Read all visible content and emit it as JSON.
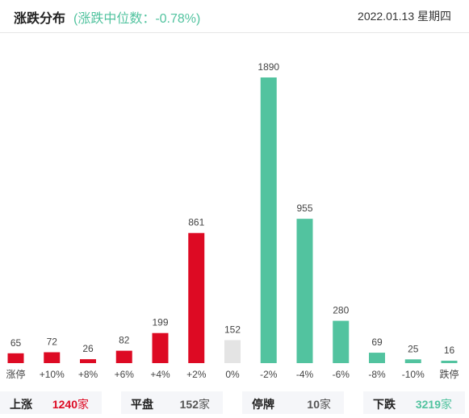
{
  "header": {
    "title": "涨跌分布",
    "median_text": "(涨跌中位数：-0.78%)",
    "date": "2022.01.13 星期四"
  },
  "colors": {
    "up": "#dd0a23",
    "flat": "#e4e4e4",
    "down": "#52c39f"
  },
  "chart_data": {
    "type": "bar",
    "categories": [
      "涨停",
      "+10%",
      "+8%",
      "+6%",
      "+4%",
      "+2%",
      "0%",
      "-2%",
      "-4%",
      "-6%",
      "-8%",
      "-10%",
      "跌停"
    ],
    "values": [
      65,
      72,
      26,
      82,
      199,
      861,
      152,
      1890,
      955,
      280,
      69,
      25,
      16
    ],
    "bar_colors": [
      "up",
      "up",
      "up",
      "up",
      "up",
      "up",
      "flat",
      "down",
      "down",
      "down",
      "down",
      "down",
      "down"
    ],
    "ylim": [
      0,
      1890
    ]
  },
  "footer": {
    "up": {
      "label": "上涨",
      "value": "1240",
      "unit": "家"
    },
    "flat": {
      "label": "平盘",
      "value": "152",
      "unit": "家"
    },
    "halt": {
      "label": "停牌",
      "value": "10",
      "unit": "家"
    },
    "down": {
      "label": "下跌",
      "value": "3219",
      "unit": "家"
    }
  }
}
